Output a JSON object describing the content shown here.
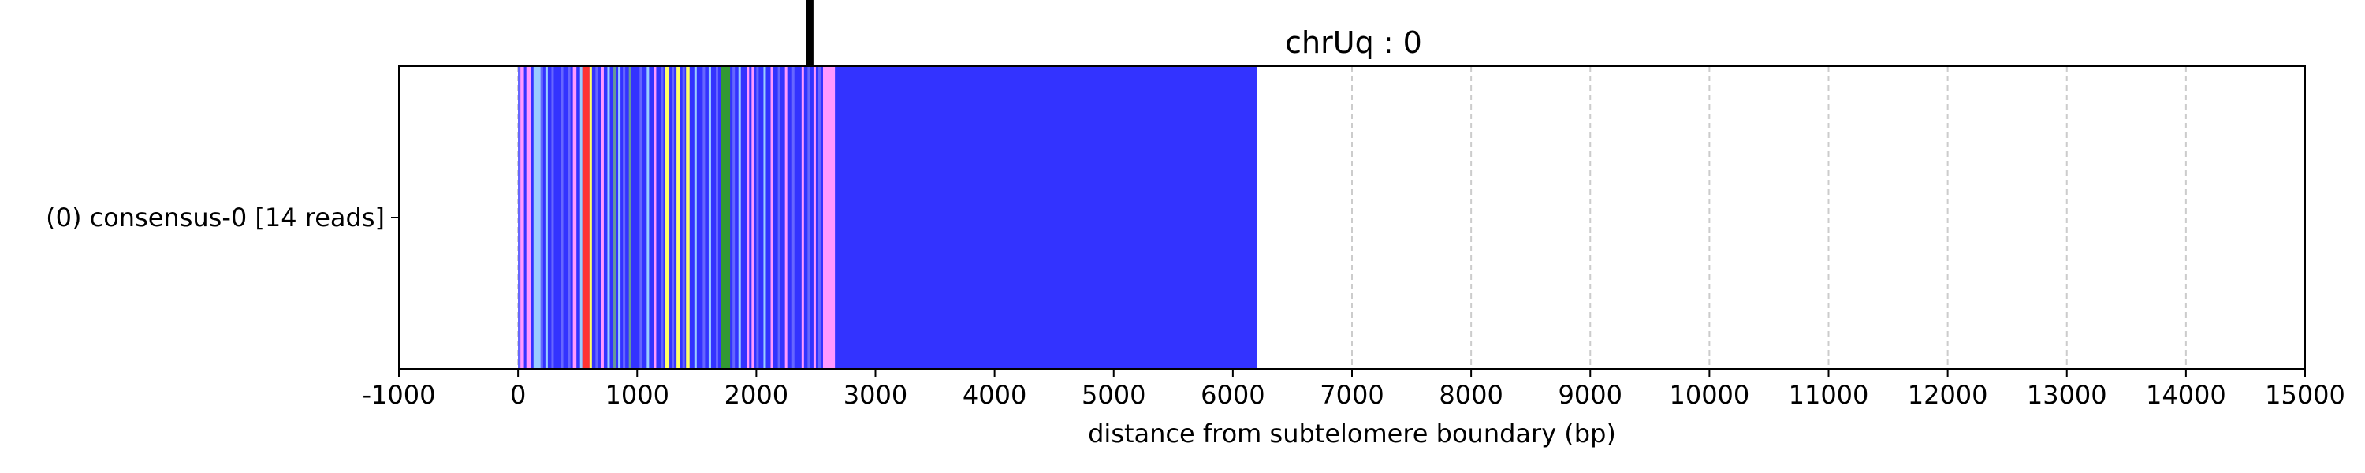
{
  "chart_data": {
    "type": "bar",
    "title": "chrUq : 0",
    "xlabel": "distance from subtelomere boundary (bp)",
    "ylabel": "",
    "xlim": [
      -1000,
      15000
    ],
    "x_ticks": [
      -1000,
      0,
      1000,
      2000,
      3000,
      4000,
      5000,
      6000,
      7000,
      8000,
      9000,
      10000,
      11000,
      12000,
      13000,
      14000,
      15000
    ],
    "x_tick_labels": [
      "-1000",
      "0",
      "1000",
      "2000",
      "3000",
      "4000",
      "5000",
      "6000",
      "7000",
      "8000",
      "9000",
      "10000",
      "11000",
      "12000",
      "13000",
      "14000",
      "15000"
    ],
    "grid": "vertical dashed at x ticks",
    "rows": [
      {
        "label": "(0) consensus-0 [14 reads]",
        "start": 0,
        "end": 6200
      }
    ],
    "marker": {
      "x": 2450,
      "color": "#000000"
    },
    "background_color": "#3333ff",
    "segments": [
      {
        "start": 0,
        "end": 20,
        "color": "#6666ff"
      },
      {
        "start": 20,
        "end": 50,
        "color": "#ff99ff"
      },
      {
        "start": 50,
        "end": 70,
        "color": "#3333ff"
      },
      {
        "start": 70,
        "end": 110,
        "color": "#ff99ff"
      },
      {
        "start": 110,
        "end": 130,
        "color": "#3333ff"
      },
      {
        "start": 130,
        "end": 190,
        "color": "#99ccff"
      },
      {
        "start": 190,
        "end": 210,
        "color": "#6666ff"
      },
      {
        "start": 230,
        "end": 250,
        "color": "#99ccff"
      },
      {
        "start": 280,
        "end": 300,
        "color": "#6666ff"
      },
      {
        "start": 360,
        "end": 380,
        "color": "#6666ff"
      },
      {
        "start": 420,
        "end": 440,
        "color": "#6666ff"
      },
      {
        "start": 460,
        "end": 490,
        "color": "#ff99ff"
      },
      {
        "start": 520,
        "end": 540,
        "color": "#99ccff"
      },
      {
        "start": 540,
        "end": 600,
        "color": "#ff3333"
      },
      {
        "start": 600,
        "end": 620,
        "color": "#ffff66"
      },
      {
        "start": 650,
        "end": 670,
        "color": "#6666ff"
      },
      {
        "start": 700,
        "end": 720,
        "color": "#ff99ff"
      },
      {
        "start": 750,
        "end": 770,
        "color": "#99ccff"
      },
      {
        "start": 800,
        "end": 820,
        "color": "#669999"
      },
      {
        "start": 840,
        "end": 860,
        "color": "#99ccff"
      },
      {
        "start": 880,
        "end": 900,
        "color": "#6666ff"
      },
      {
        "start": 930,
        "end": 950,
        "color": "#669999"
      },
      {
        "start": 1020,
        "end": 1040,
        "color": "#6666ff"
      },
      {
        "start": 1080,
        "end": 1100,
        "color": "#99ccff"
      },
      {
        "start": 1140,
        "end": 1160,
        "color": "#ff99ff"
      },
      {
        "start": 1200,
        "end": 1220,
        "color": "#6666ff"
      },
      {
        "start": 1230,
        "end": 1270,
        "color": "#ffff66"
      },
      {
        "start": 1290,
        "end": 1310,
        "color": "#6666ff"
      },
      {
        "start": 1330,
        "end": 1360,
        "color": "#ffff66"
      },
      {
        "start": 1380,
        "end": 1400,
        "color": "#6666ff"
      },
      {
        "start": 1410,
        "end": 1440,
        "color": "#ffff66"
      },
      {
        "start": 1480,
        "end": 1500,
        "color": "#99ccff"
      },
      {
        "start": 1550,
        "end": 1570,
        "color": "#6666ff"
      },
      {
        "start": 1600,
        "end": 1620,
        "color": "#99ccff"
      },
      {
        "start": 1660,
        "end": 1680,
        "color": "#6666ff"
      },
      {
        "start": 1700,
        "end": 1780,
        "color": "#339933"
      },
      {
        "start": 1800,
        "end": 1820,
        "color": "#6666ff"
      },
      {
        "start": 1850,
        "end": 1870,
        "color": "#99ccff"
      },
      {
        "start": 1920,
        "end": 1940,
        "color": "#ff99ff"
      },
      {
        "start": 1960,
        "end": 1980,
        "color": "#ff99ff"
      },
      {
        "start": 2000,
        "end": 2020,
        "color": "#6666ff"
      },
      {
        "start": 2060,
        "end": 2080,
        "color": "#99ccff"
      },
      {
        "start": 2120,
        "end": 2140,
        "color": "#ff99ff"
      },
      {
        "start": 2180,
        "end": 2200,
        "color": "#6666ff"
      },
      {
        "start": 2240,
        "end": 2260,
        "color": "#ff99ff"
      },
      {
        "start": 2300,
        "end": 2320,
        "color": "#6666ff"
      },
      {
        "start": 2380,
        "end": 2400,
        "color": "#ff99ff"
      },
      {
        "start": 2430,
        "end": 2450,
        "color": "#6666ff"
      },
      {
        "start": 2480,
        "end": 2500,
        "color": "#ff99ff"
      },
      {
        "start": 2520,
        "end": 2540,
        "color": "#6666ff"
      },
      {
        "start": 2560,
        "end": 2660,
        "color": "#ff99ff"
      }
    ]
  }
}
